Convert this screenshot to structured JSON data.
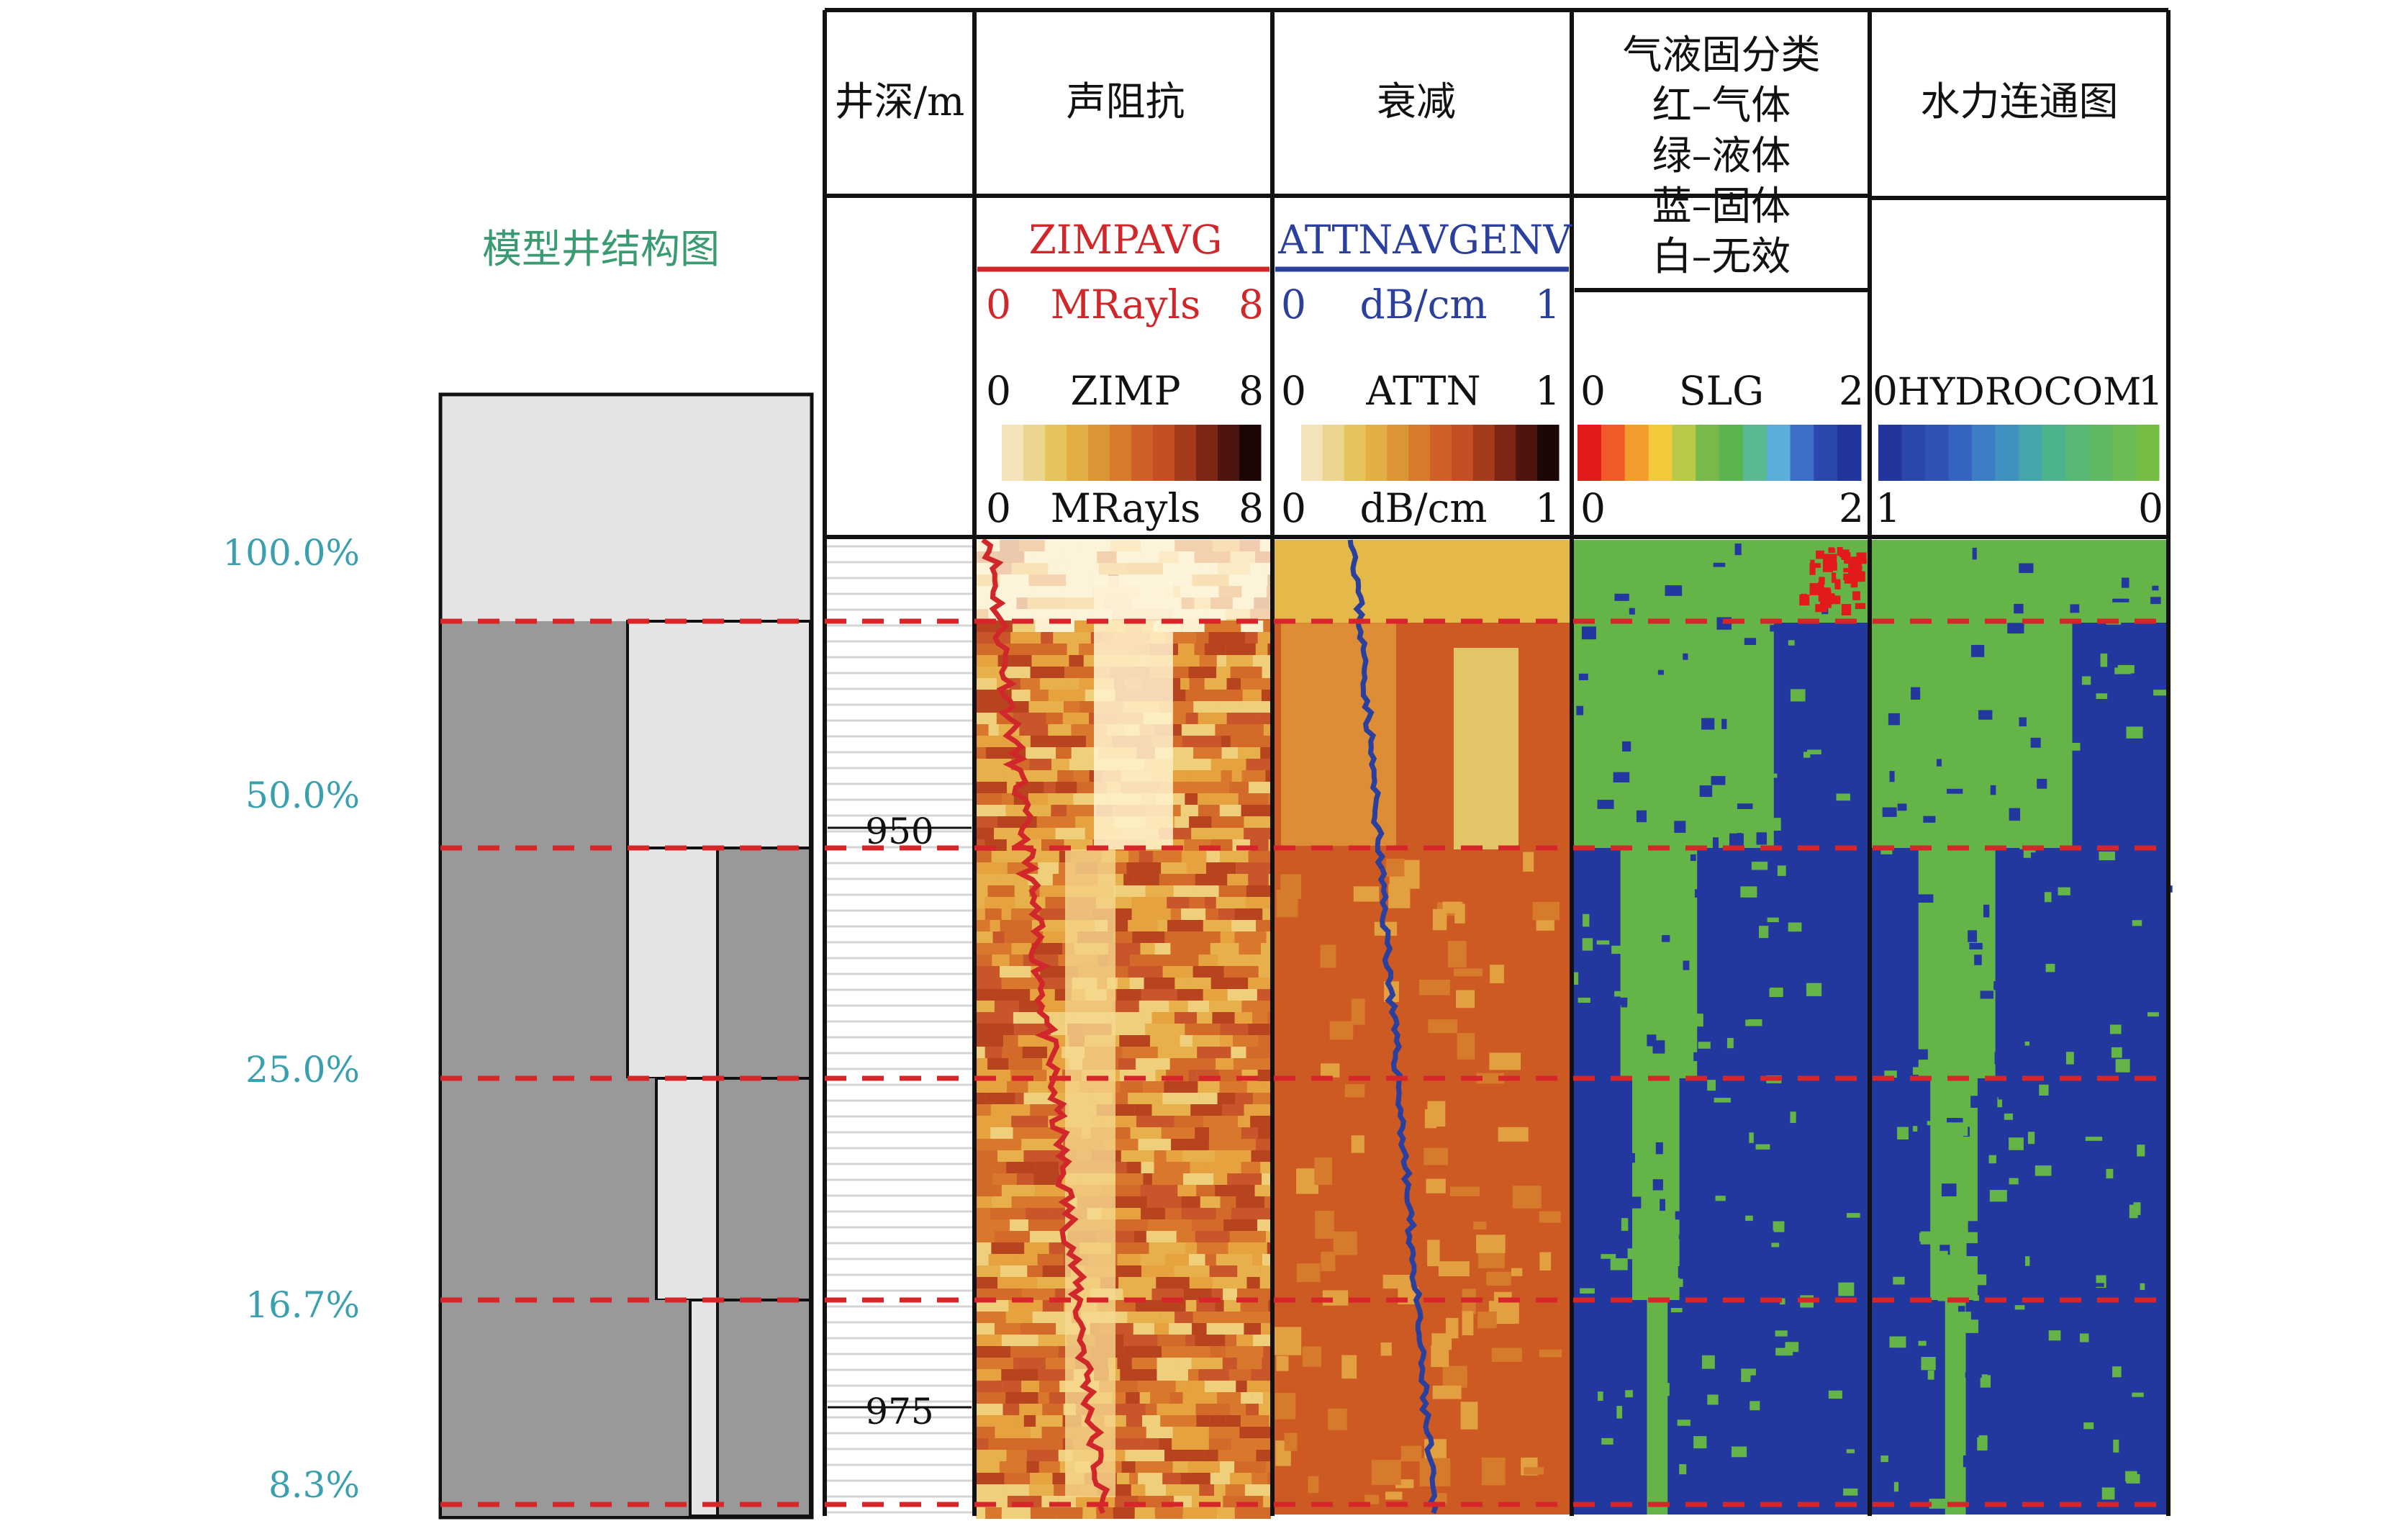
{
  "model": {
    "title": "模型井结构图",
    "percent_labels": [
      "100.0%",
      "50.0%",
      "25.0%",
      "16.7%",
      "8.3%"
    ]
  },
  "depth_track": {
    "header": "井深/m",
    "tick_labels": [
      "950",
      "975"
    ]
  },
  "tracks": [
    {
      "header": [
        "声阻抗"
      ],
      "curve": {
        "name": "ZIMPAVG",
        "unit": "MRayls",
        "min": "0",
        "max": "8",
        "color": "#d0272a"
      },
      "image": {
        "name": "ZIMP",
        "min": "0",
        "max": "8",
        "unit": "MRayls",
        "unit_min": "0",
        "unit_max": "8"
      },
      "palette": [
        "#f3e3b8",
        "#ecd58e",
        "#e6c45c",
        "#e2ae45",
        "#dc9535",
        "#d77a2c",
        "#cf6128",
        "#c44f22",
        "#a53a1c",
        "#7d2616",
        "#4e1410",
        "#1d0606"
      ]
    },
    {
      "header": [
        "衰减"
      ],
      "curve": {
        "name": "ATTNAVGENV",
        "unit": "dB/cm",
        "min": "0",
        "max": "1",
        "color": "#2b3f9c"
      },
      "image": {
        "name": "ATTN",
        "min": "0",
        "max": "1",
        "unit": "dB/cm",
        "unit_min": "0",
        "unit_max": "1"
      },
      "palette": [
        "#f3e3b8",
        "#ecd58e",
        "#e6c45c",
        "#e2ae45",
        "#dc9535",
        "#d77a2c",
        "#cf6128",
        "#c44f22",
        "#a53a1c",
        "#7d2616",
        "#4e1410",
        "#1d0606"
      ]
    },
    {
      "header": [
        "气液固分类",
        "红–气体",
        "绿–液体",
        "蓝–固体",
        "白–无效"
      ],
      "image": {
        "name": "SLG",
        "min": "0",
        "max": "2",
        "unit": "",
        "unit_min": "0",
        "unit_max": "2"
      },
      "palette": [
        "#e31a1c",
        "#f05a28",
        "#f39c2b",
        "#f3c93c",
        "#b9c94a",
        "#79b84a",
        "#5ab54e",
        "#59b88f",
        "#5aaed9",
        "#3d6fc9",
        "#2a47ad",
        "#22349e"
      ]
    },
    {
      "header": [
        "水力连通图"
      ],
      "image": {
        "name": "HYDROCOM",
        "min": "0",
        "max": "1",
        "unit": "",
        "unit_min": "1",
        "unit_max": "0"
      },
      "palette": [
        "#22349e",
        "#2a47ad",
        "#3051b5",
        "#3565c0",
        "#3b7ec4",
        "#3f92bf",
        "#44a5aa",
        "#4db38d",
        "#57b876",
        "#5fb964",
        "#6bbb54",
        "#76bd46"
      ]
    }
  ],
  "colors": {
    "red_dash": "#d6262a",
    "gas": "#e31a1c",
    "liquid": "#64b448",
    "solid": "#22389e",
    "steel": "#999999",
    "steel_light": "#e4e4e4"
  }
}
